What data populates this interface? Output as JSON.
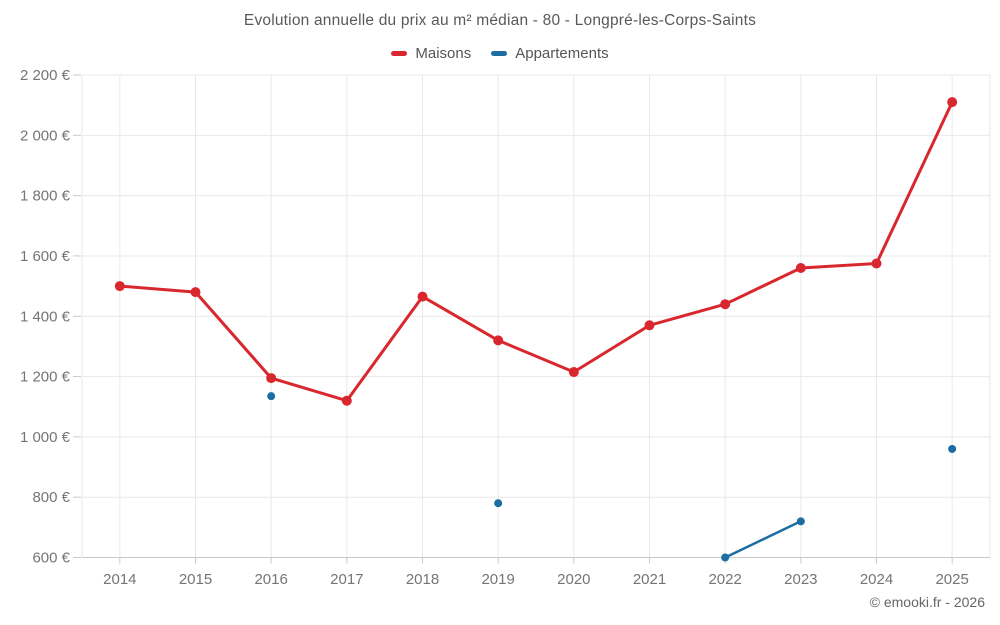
{
  "title": "Evolution annuelle du prix au m² médian - 80 - Longpré-les-Corps-Saints",
  "legend": [
    {
      "label": "Maisons",
      "color": "#d9272e"
    },
    {
      "label": "Appartements",
      "color": "#1b6da3"
    }
  ],
  "footer": "© emooki.fr - 2026",
  "chart_data": {
    "type": "line",
    "title": "Evolution annuelle du prix au m² médian - 80 - Longpré-les-Corps-Saints",
    "categories": [
      "2014",
      "2015",
      "2016",
      "2017",
      "2018",
      "2019",
      "2020",
      "2021",
      "2022",
      "2023",
      "2024",
      "2025"
    ],
    "series": [
      {
        "name": "Maisons",
        "color": "#d9272e",
        "values": [
          1500,
          1480,
          1195,
          1120,
          1465,
          1320,
          1215,
          1370,
          1440,
          1560,
          1575,
          2110
        ]
      },
      {
        "name": "Appartements",
        "color": "#1b6da3",
        "values": [
          null,
          null,
          1135,
          null,
          null,
          780,
          null,
          null,
          600,
          720,
          null,
          960
        ]
      }
    ],
    "ylim": [
      600,
      2200
    ],
    "ytick_step": 200,
    "ytick_labels": [
      "600 €",
      "800 €",
      "1 000 €",
      "1 200 €",
      "1 400 €",
      "1 600 €",
      "1 800 €",
      "2 000 €",
      "2 200 €"
    ],
    "ylabel": "",
    "xlabel": "",
    "grid": true,
    "legend_position": "top",
    "colors": {
      "grid": "#e8e8e8",
      "axis": "#c9c9c9",
      "tick_text": "#757575",
      "title_text": "#595959"
    }
  }
}
